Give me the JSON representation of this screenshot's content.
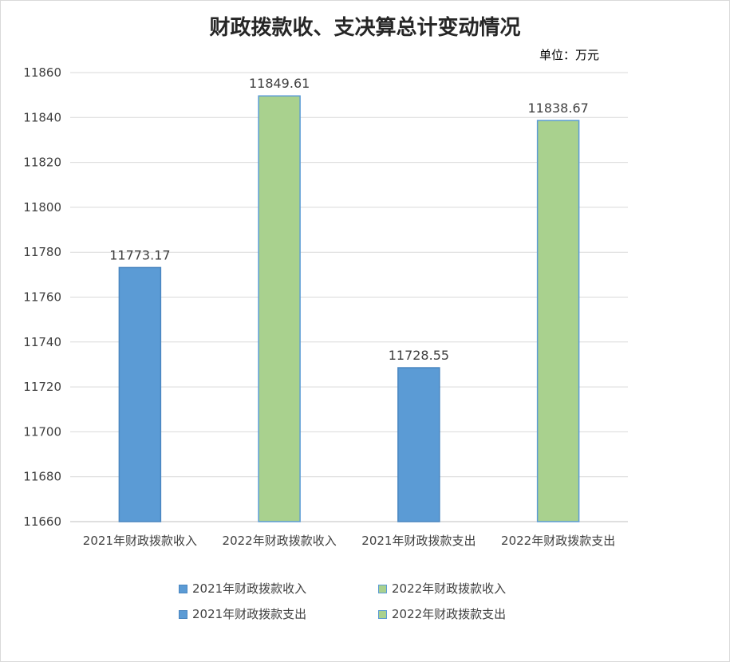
{
  "chart_data": {
    "type": "bar",
    "title": "财政拨款收、支决算总计变动情况",
    "unit_label": "单位：万元",
    "categories": [
      "2021年财政拨款收入",
      "2022年财政拨款收入",
      "2021年财政拨款支出",
      "2022年财政拨款支出"
    ],
    "values": [
      11773.17,
      11849.61,
      11728.55,
      11838.67
    ],
    "value_labels": [
      "11773.17",
      "11849.61",
      "11728.55",
      "11838.67"
    ],
    "bar_colors": [
      "#5b9bd5",
      "#a9d18e",
      "#5b9bd5",
      "#a9d18e"
    ],
    "bar_border_colors": [
      "#4a86c0",
      "#5b9bd5",
      "#4a86c0",
      "#5b9bd5"
    ],
    "ylim": [
      11660,
      11860
    ],
    "yticks": [
      "11660",
      "11680",
      "11700",
      "11720",
      "11740",
      "11760",
      "11780",
      "11800",
      "11820",
      "11840",
      "11860"
    ],
    "grid": true,
    "legend_position": "bottom",
    "legend": [
      {
        "label": "2021年财政拨款收入",
        "color": "#5b9bd5"
      },
      {
        "label": "2022年财政拨款收入",
        "color": "#a9d18e"
      },
      {
        "label": "2021年财政拨款支出",
        "color": "#5b9bd5"
      },
      {
        "label": "2022年财政拨款支出",
        "color": "#a9d18e"
      }
    ]
  }
}
